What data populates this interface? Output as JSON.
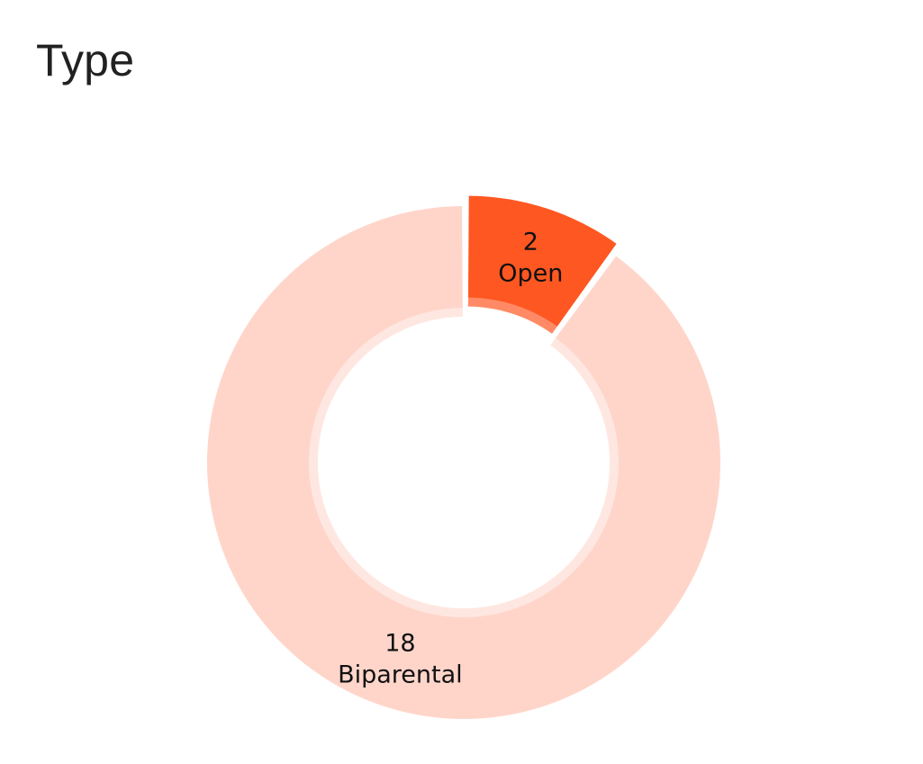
{
  "card": {
    "title": "Type"
  },
  "chart_data": {
    "type": "pie",
    "title": "Type",
    "variant": "donut",
    "start_angle_deg": 90,
    "direction": "clockwise",
    "slices": [
      {
        "label": "Open",
        "value": 2,
        "color": "#FF5722",
        "highlighted": true
      },
      {
        "label": "Biparental",
        "value": 18,
        "color": "#FFD5CA",
        "highlighted": false
      }
    ],
    "labels_shown": "value and category",
    "legend": "none"
  },
  "colors": {
    "title_text": "#212121",
    "label_text": "#111111",
    "inner_halo": "#FFE7E1",
    "highlight_halo": "#FF8A65"
  }
}
